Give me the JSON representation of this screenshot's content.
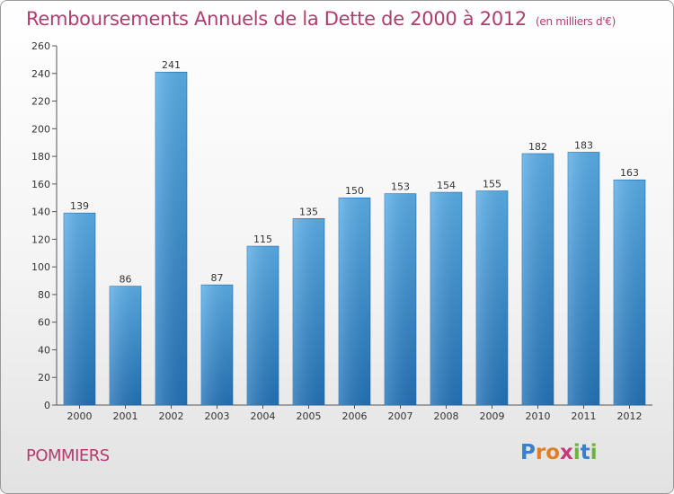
{
  "title": "Remboursements Annuels de la Dette de 2000 à 2012",
  "unit": "(en milliers d'€)",
  "commune": "POMMIERS",
  "logo": {
    "letters": [
      {
        "ch": "P",
        "color": "#3a7fc9"
      },
      {
        "ch": "r",
        "color": "#e07f2a"
      },
      {
        "ch": "o",
        "color": "#e07f2a"
      },
      {
        "ch": "x",
        "color": "#c23b7a"
      },
      {
        "ch": "i",
        "color": "#6db33f"
      },
      {
        "ch": "t",
        "color": "#3a7fc9"
      },
      {
        "ch": "i",
        "color": "#6db33f"
      }
    ]
  },
  "chart_data": {
    "type": "bar",
    "categories": [
      "2000",
      "2001",
      "2002",
      "2003",
      "2004",
      "2005",
      "2006",
      "2007",
      "2008",
      "2009",
      "2010",
      "2011",
      "2012"
    ],
    "values": [
      139,
      86,
      241,
      87,
      115,
      135,
      150,
      153,
      154,
      155,
      182,
      183,
      163
    ],
    "ylim": [
      0,
      260
    ],
    "yticks": [
      0,
      20,
      40,
      60,
      80,
      100,
      120,
      140,
      160,
      180,
      200,
      220,
      240,
      260
    ],
    "grid": false,
    "bar_color": "#3a8fd6"
  }
}
